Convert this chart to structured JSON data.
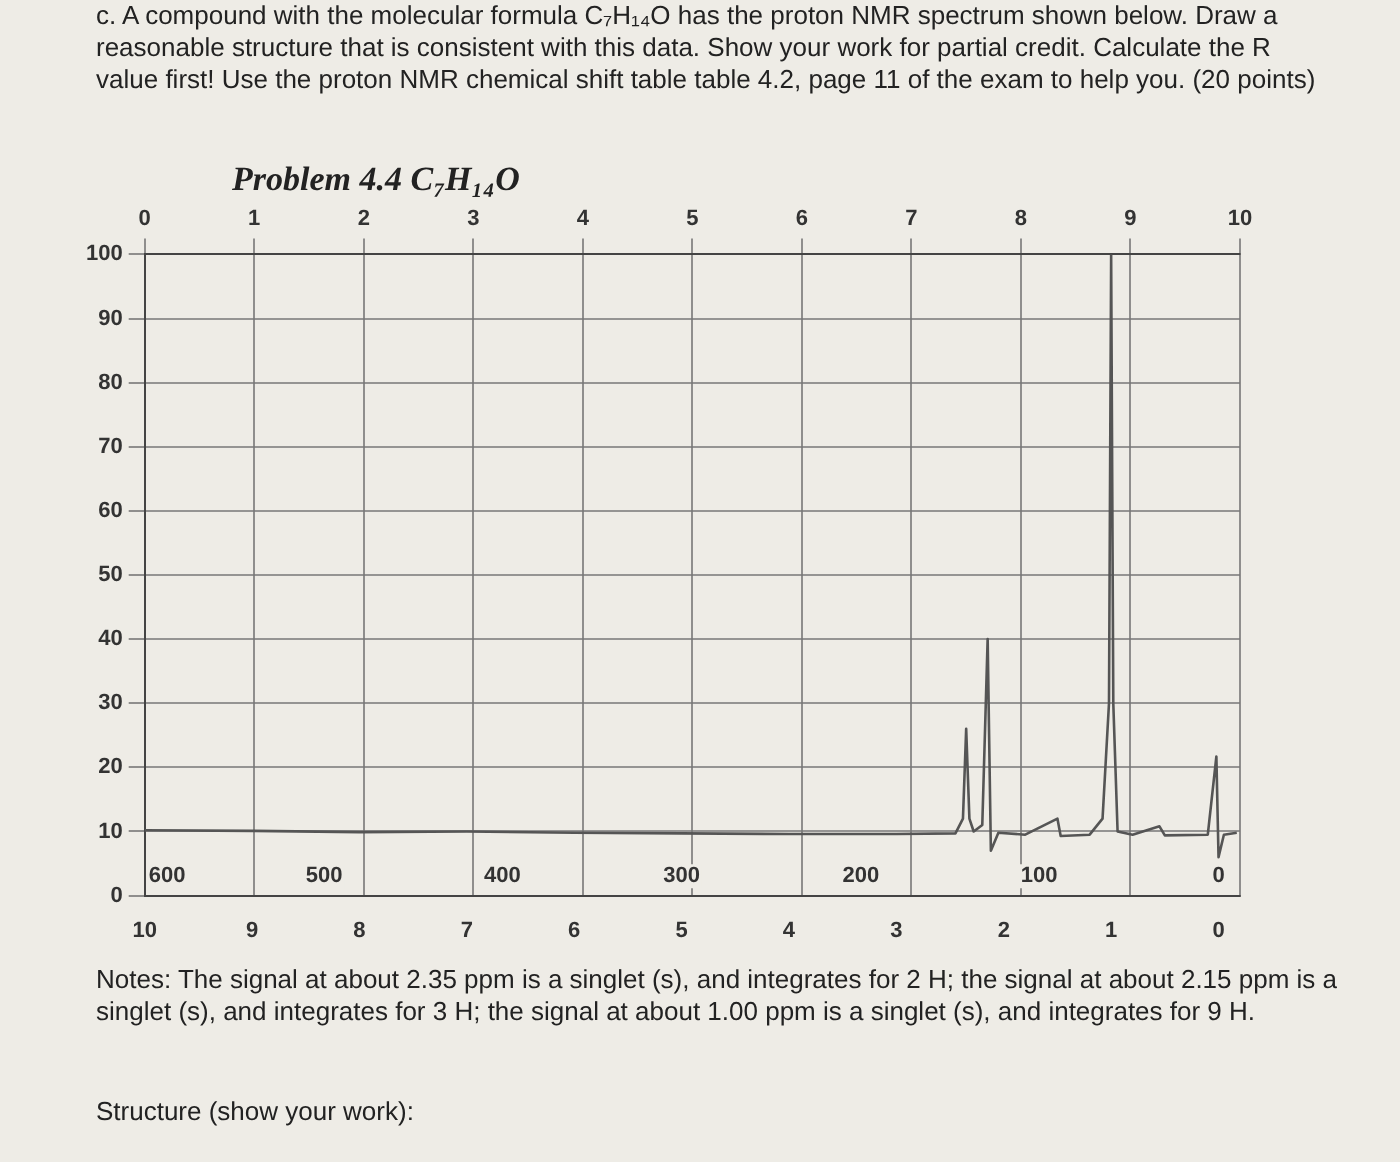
{
  "chart_data": {
    "type": "line",
    "title": "Problem 4.4 C₇H₁₄O",
    "annotations": [
      "c. A compound with the molecular formula C₇H₁₄O has the proton NMR spectrum shown below. Draw a reasonable structure that is consistent with this data. Show your work for partial credit. Calculate the R value first! Use the proton NMR chemical shift table table 4.2, page 11 of the exam to help you. (20 points)",
      "Notes: The signal at about 2.35 ppm is a singlet (s), and integrates for 2 H; the signal at about 2.15 ppm is a singlet (s), and integrates for 3 H; the signal at about 1.00 ppm is a singlet (s), and integrates for 9 H.",
      "Structure (show your work):",
      "600",
      {
        "text": "500",
        "x": 8.33,
        "y": 3
      },
      {
        "text": "400",
        "x": 6.67,
        "y": 3
      },
      {
        "text": "300",
        "x": 5,
        "y": 3
      },
      {
        "text": "200",
        "x": 3.33,
        "y": 3
      },
      {
        "text": "100",
        "x": 1.67,
        "y": 3
      },
      {
        "text": "0",
        "x": 0,
        "y": 3
      }
    ],
    "x": [
      10,
      9,
      8,
      7,
      6,
      5,
      4,
      3,
      2.45,
      2.38,
      2.35,
      2.32,
      2.28,
      2.2,
      2.15,
      2.12,
      2.05,
      1.8,
      1.5,
      1.47,
      1.2,
      1.08,
      1.02,
      1.0,
      0.98,
      0.94,
      0.8,
      0.55,
      0.5,
      0.1,
      0.02,
      0,
      -0.05,
      -0.17
    ],
    "series": [
      {
        "color": "#555555",
        "values": [
          10.2,
          10.1,
          9.9,
          10,
          9.8,
          9.7,
          9.6,
          9.6,
          9.7,
          12,
          26,
          12,
          10,
          11,
          40,
          7,
          9.8,
          9.5,
          12,
          9.3,
          9.5,
          12,
          30,
          100,
          30,
          10,
          9.5,
          10.8,
          9.4,
          9.5,
          21.7,
          6,
          9.5,
          9.8
        ]
      }
    ],
    "xlim": [
      10,
      -0.2
    ],
    "xticks": [
      10,
      9,
      8,
      7,
      6,
      5,
      4,
      3,
      2,
      1,
      0
    ],
    "x2lim": [
      0,
      10
    ],
    "x2ticks": [
      0,
      1,
      2,
      3,
      4,
      5,
      6,
      7,
      8,
      9,
      10
    ],
    "ylim": [
      0,
      100
    ],
    "yticks": [
      0,
      10,
      20,
      30,
      40,
      50,
      60,
      70,
      80,
      90,
      100
    ],
    "grid": true,
    "marker": "none",
    "line_style": "solid"
  }
}
